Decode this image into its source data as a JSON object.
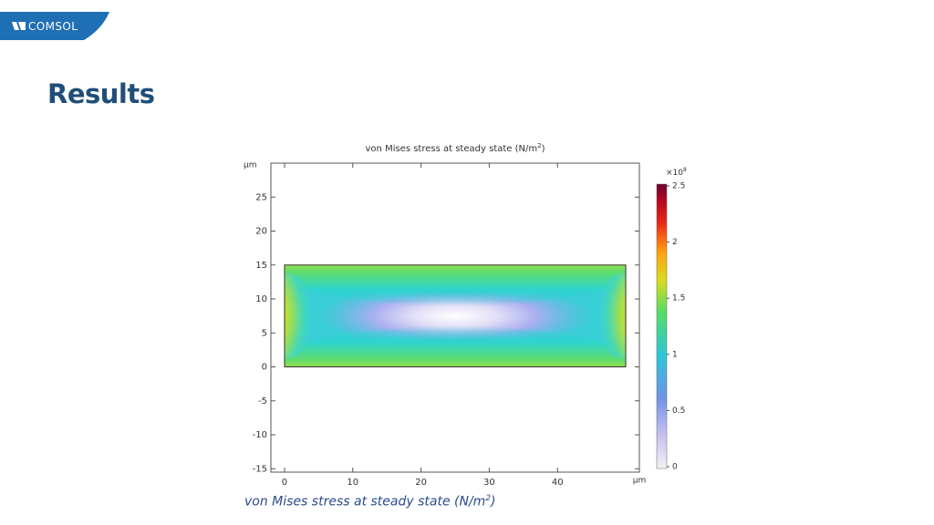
{
  "brand": {
    "logo_text": "COMSOL",
    "color": "#1f6fb5"
  },
  "page": {
    "title": "Results",
    "caption": "von Mises stress at steady state (N/m",
    "caption_sup": "2",
    "caption_end": ")"
  },
  "chart_data": {
    "type": "heatmap",
    "title": "von Mises stress at steady state (N/m",
    "title_sup": "2",
    "title_end": ")",
    "unit_label_y": "µm",
    "unit_label_x": "µm",
    "xlim": [
      -2,
      52
    ],
    "ylim": [
      -15.5,
      30
    ],
    "x_ticks": [
      0,
      10,
      20,
      30,
      40
    ],
    "y_ticks": [
      25,
      20,
      15,
      10,
      5,
      0,
      -5,
      -10,
      -15
    ],
    "domain": {
      "x": [
        0,
        50
      ],
      "y": [
        0,
        15
      ]
    },
    "colorbar": {
      "multiplier_base": "×10",
      "multiplier_exp": "8",
      "range": [
        0,
        2.5
      ],
      "ticks": [
        "2.5",
        "2",
        "1.5",
        "1",
        "0.5",
        "0"
      ],
      "tick_values": [
        2.5,
        2,
        1.5,
        1,
        0.5,
        0
      ]
    }
  }
}
